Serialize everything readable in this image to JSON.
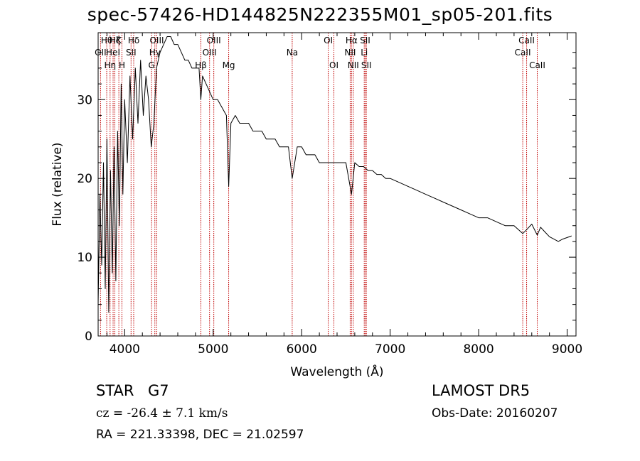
{
  "header": {
    "title": "spec-57426-HD144825N222355M01_sp05-201.fits",
    "object_class": "STAR",
    "subclass": "G7",
    "survey": "LAMOST  DR5",
    "redshift_line": "cz = -26.4 ± 7.1 km/s",
    "obs_date": "Obs-Date: 20160207",
    "coords": "RA = 221.33398, DEC =  21.02597"
  },
  "chart_data": {
    "type": "line",
    "title": "spec-57426-HD144825N222355M01_sp05-201.fits",
    "xlabel": "Wavelength (Å)",
    "ylabel": "Flux (relative)",
    "xlim": [
      3700,
      9100
    ],
    "ylim": [
      0,
      38.5
    ],
    "x_ticks": [
      4000,
      5000,
      6000,
      7000,
      8000,
      9000
    ],
    "y_ticks": [
      0,
      10,
      20,
      30
    ],
    "line_color": "#000000",
    "marker_color": "#c00000",
    "series": [
      {
        "x": [
          3700,
          3720,
          3740,
          3760,
          3780,
          3800,
          3820,
          3840,
          3860,
          3880,
          3900,
          3920,
          3940,
          3960,
          3980,
          4000,
          4030,
          4060,
          4090,
          4120,
          4150,
          4180,
          4210,
          4240,
          4270,
          4300,
          4330,
          4360,
          4400,
          4440,
          4480,
          4520,
          4560,
          4600,
          4640,
          4680,
          4720,
          4760,
          4800,
          4840,
          4860,
          4880,
          4920,
          4960,
          5000,
          5050,
          5100,
          5150,
          5175,
          5200,
          5250,
          5300,
          5350,
          5400,
          5450,
          5500,
          5550,
          5600,
          5650,
          5700,
          5750,
          5800,
          5850,
          5893,
          5950,
          6000,
          6050,
          6100,
          6150,
          6200,
          6250,
          6300,
          6350,
          6400,
          6450,
          6500,
          6563,
          6600,
          6650,
          6700,
          6750,
          6800,
          6850,
          6900,
          6950,
          7000,
          7100,
          7200,
          7300,
          7400,
          7500,
          7600,
          7700,
          7800,
          7900,
          8000,
          8100,
          8200,
          8300,
          8400,
          8498,
          8542,
          8600,
          8662,
          8700,
          8750,
          8800,
          8850,
          8900,
          8950,
          9000,
          9050
        ],
        "y": [
          4,
          18,
          9,
          22,
          6,
          25,
          3,
          21,
          8,
          24,
          7,
          26,
          14,
          32,
          18,
          30,
          22,
          33,
          25,
          34,
          27,
          35,
          28,
          33,
          30,
          24,
          27,
          34,
          36,
          37,
          38,
          38,
          37,
          37,
          36,
          35,
          35,
          34,
          34,
          34,
          30,
          33,
          32,
          31,
          30,
          30,
          29,
          28,
          19,
          27,
          28,
          27,
          27,
          27,
          26,
          26,
          26,
          25,
          25,
          25,
          24,
          24,
          24,
          20,
          24,
          24,
          23,
          23,
          23,
          22,
          22,
          22,
          22,
          22,
          22,
          22,
          18,
          22,
          21.5,
          21.5,
          21,
          21,
          20.5,
          20.5,
          20,
          20,
          19.5,
          19,
          18.5,
          18,
          17.5,
          17,
          16.5,
          16,
          15.5,
          15,
          15,
          14.5,
          14,
          14,
          13,
          13.5,
          14.2,
          12.8,
          13.8,
          13.2,
          12.6,
          12.3,
          12,
          12.3,
          12.5,
          12.7
        ]
      }
    ],
    "lines": [
      {
        "wavelength": 3727,
        "label": "OII",
        "row": 1
      },
      {
        "wavelength": 3797,
        "label": "Hθ",
        "row": 0
      },
      {
        "wavelength": 3835,
        "label": "Hη",
        "row": 2
      },
      {
        "wavelength": 3869,
        "label": "HeI",
        "row": 1
      },
      {
        "wavelength": 3889,
        "label": "Hζ",
        "row": 0
      },
      {
        "wavelength": 3934,
        "label": "K",
        "row": 0
      },
      {
        "wavelength": 3969,
        "label": "H",
        "row": 2
      },
      {
        "wavelength": 4072,
        "label": "SII",
        "row": 1
      },
      {
        "wavelength": 4102,
        "label": "Hδ",
        "row": 0
      },
      {
        "wavelength": 4304,
        "label": "G",
        "row": 2
      },
      {
        "wavelength": 4341,
        "label": "Hγ",
        "row": 1
      },
      {
        "wavelength": 4363,
        "label": "OIII",
        "row": 0
      },
      {
        "wavelength": 4861,
        "label": "Hβ",
        "row": 2
      },
      {
        "wavelength": 4959,
        "label": "OIII",
        "row": 1
      },
      {
        "wavelength": 5007,
        "label": "OIII",
        "row": 0
      },
      {
        "wavelength": 5175,
        "label": "Mg",
        "row": 2
      },
      {
        "wavelength": 5893,
        "label": "Na",
        "row": 1
      },
      {
        "wavelength": 6300,
        "label": "OI",
        "row": 0
      },
      {
        "wavelength": 6364,
        "label": "OI",
        "row": 2
      },
      {
        "wavelength": 6548,
        "label": "NII",
        "row": 1
      },
      {
        "wavelength": 6563,
        "label": "Hα",
        "row": 0
      },
      {
        "wavelength": 6583,
        "label": "NII",
        "row": 2
      },
      {
        "wavelength": 6707,
        "label": "Li",
        "row": 1
      },
      {
        "wavelength": 6717,
        "label": "SII",
        "row": 0
      },
      {
        "wavelength": 6731,
        "label": "SII",
        "row": 2
      },
      {
        "wavelength": 8498,
        "label": "CaII",
        "row": 1
      },
      {
        "wavelength": 8542,
        "label": "CaII",
        "row": 0
      },
      {
        "wavelength": 8662,
        "label": "CaII",
        "row": 2
      }
    ]
  }
}
